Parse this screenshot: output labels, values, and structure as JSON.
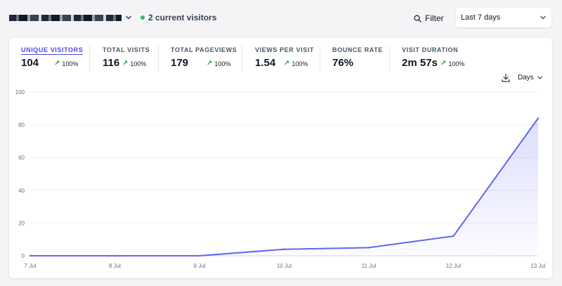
{
  "header": {
    "visitors_text": "2 current visitors",
    "filter_label": "Filter",
    "period_label": "Last 7 days"
  },
  "stats": [
    {
      "label": "UNIQUE VISITORS",
      "value": "104",
      "change": "100%",
      "active": true
    },
    {
      "label": "TOTAL VISITS",
      "value": "116",
      "change": "100%"
    },
    {
      "label": "TOTAL PAGEVIEWS",
      "value": "179",
      "change": "100%"
    },
    {
      "label": "VIEWS PER VISIT",
      "value": "1.54",
      "change": "100%"
    },
    {
      "label": "BOUNCE RATE",
      "value": "76%",
      "change": ""
    },
    {
      "label": "VISIT DURATION",
      "value": "2m 57s",
      "change": "100%"
    }
  ],
  "interval_label": "Days",
  "colors": {
    "accent": "#4f46e5",
    "line": "#6366f1",
    "positive": "#16a34a",
    "live_dot": "#22c55e"
  },
  "chart_data": {
    "type": "area",
    "x": [
      "7 Jul",
      "8 Jul",
      "9 Jul",
      "10 Jul",
      "11 Jul",
      "12 Jul",
      "13 Jul"
    ],
    "series": [
      {
        "values": [
          0,
          0,
          0,
          4,
          5,
          12,
          84
        ]
      }
    ],
    "y_ticks": [
      0,
      20,
      40,
      60,
      80,
      100
    ],
    "ylim": [
      0,
      100
    ],
    "grid": true
  }
}
